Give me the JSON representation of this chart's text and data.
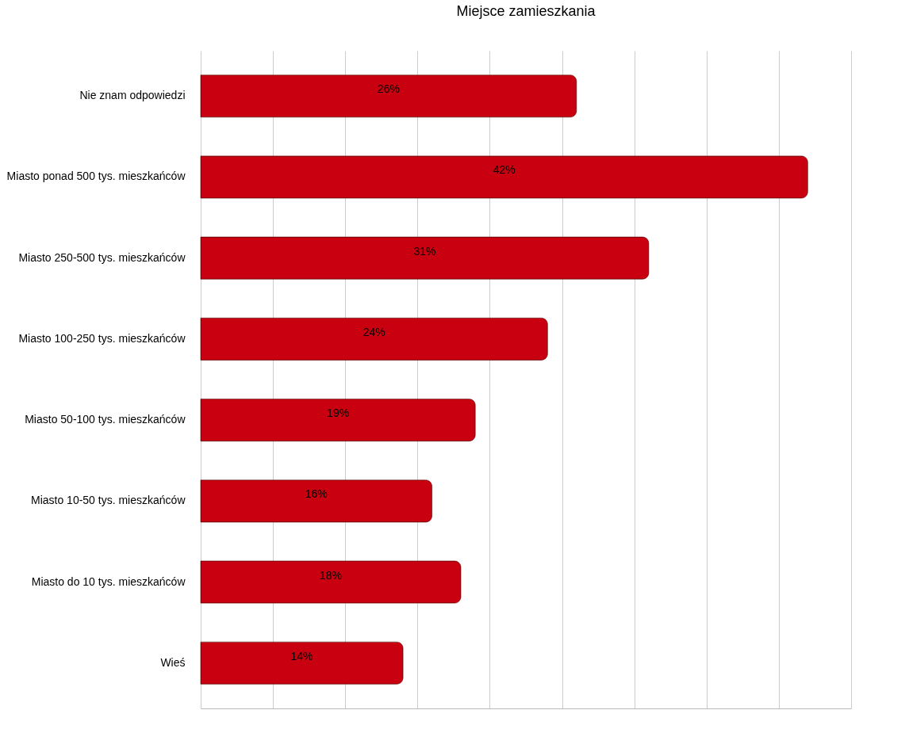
{
  "chart_data": {
    "type": "bar",
    "orientation": "horizontal",
    "title": "Miejsce zamieszkania",
    "categories": [
      "Nie znam odpowiedzi",
      "Miasto ponad 500 tys. mieszkańców",
      "Miasto 250-500 tys. mieszkańców",
      "Miasto 100-250 tys. mieszkańców",
      "Miasto 50-100 tys. mieszkańców",
      "Miasto 10-50 tys. mieszkańców",
      "Miasto do 10 tys. mieszkańców",
      "Wieś"
    ],
    "values": [
      26,
      42,
      31,
      24,
      19,
      16,
      18,
      14
    ],
    "value_labels": [
      "26%",
      "42%",
      "31%",
      "24%",
      "19%",
      "16%",
      "18%",
      "14%"
    ],
    "color": "#c8000f",
    "xlim": [
      0,
      45
    ],
    "xticks": [
      {
        "value": 0,
        "label": null
      },
      {
        "value": 5,
        "label": null
      },
      {
        "value": 10,
        "label": null
      },
      {
        "value": 15,
        "label": null
      },
      {
        "value": 20,
        "label": null
      },
      {
        "value": 25,
        "label": null
      },
      {
        "value": 30,
        "label": null
      },
      {
        "value": 35,
        "label": null
      },
      {
        "value": 40,
        "label": null
      },
      {
        "value": 45,
        "label": null
      }
    ],
    "grid": "x",
    "tick_labels": "y"
  }
}
